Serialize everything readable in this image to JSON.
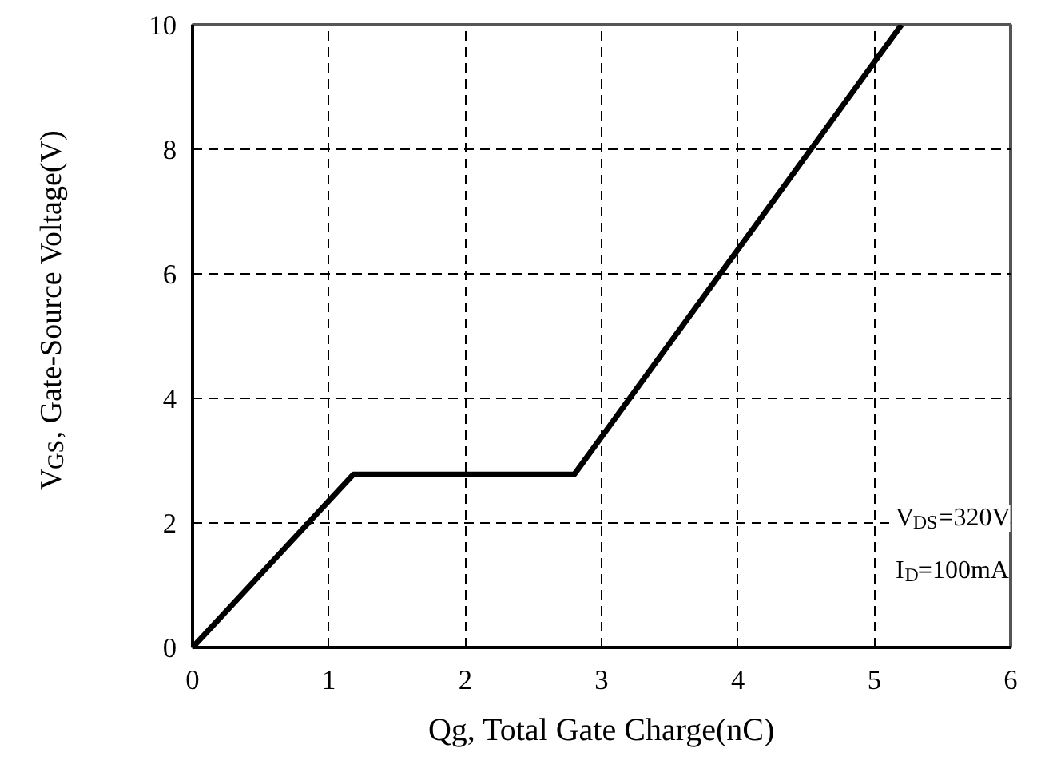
{
  "chart_data": {
    "type": "line",
    "xlabel": "Qg, Total Gate Charge(nC)",
    "ylabel": "V$_{GS}$, Gate-Source Voltage(V)",
    "x": [
      0,
      1.18,
      2.8,
      5.2
    ],
    "series": [
      {
        "color": "#000000",
        "values": [
          0,
          2.78,
          2.78,
          10
        ]
      }
    ],
    "xlim": [
      0,
      6
    ],
    "ylim": [
      0,
      10
    ],
    "xticks": [
      0,
      1,
      2,
      3,
      4,
      5,
      6
    ],
    "yticks": [
      0,
      2,
      4,
      6,
      8,
      10
    ],
    "grid": true,
    "marker": "none",
    "line_style": "solid",
    "annotations": [
      "V$_{DS}$=320V",
      "I$_{D}$=100mA"
    ]
  }
}
